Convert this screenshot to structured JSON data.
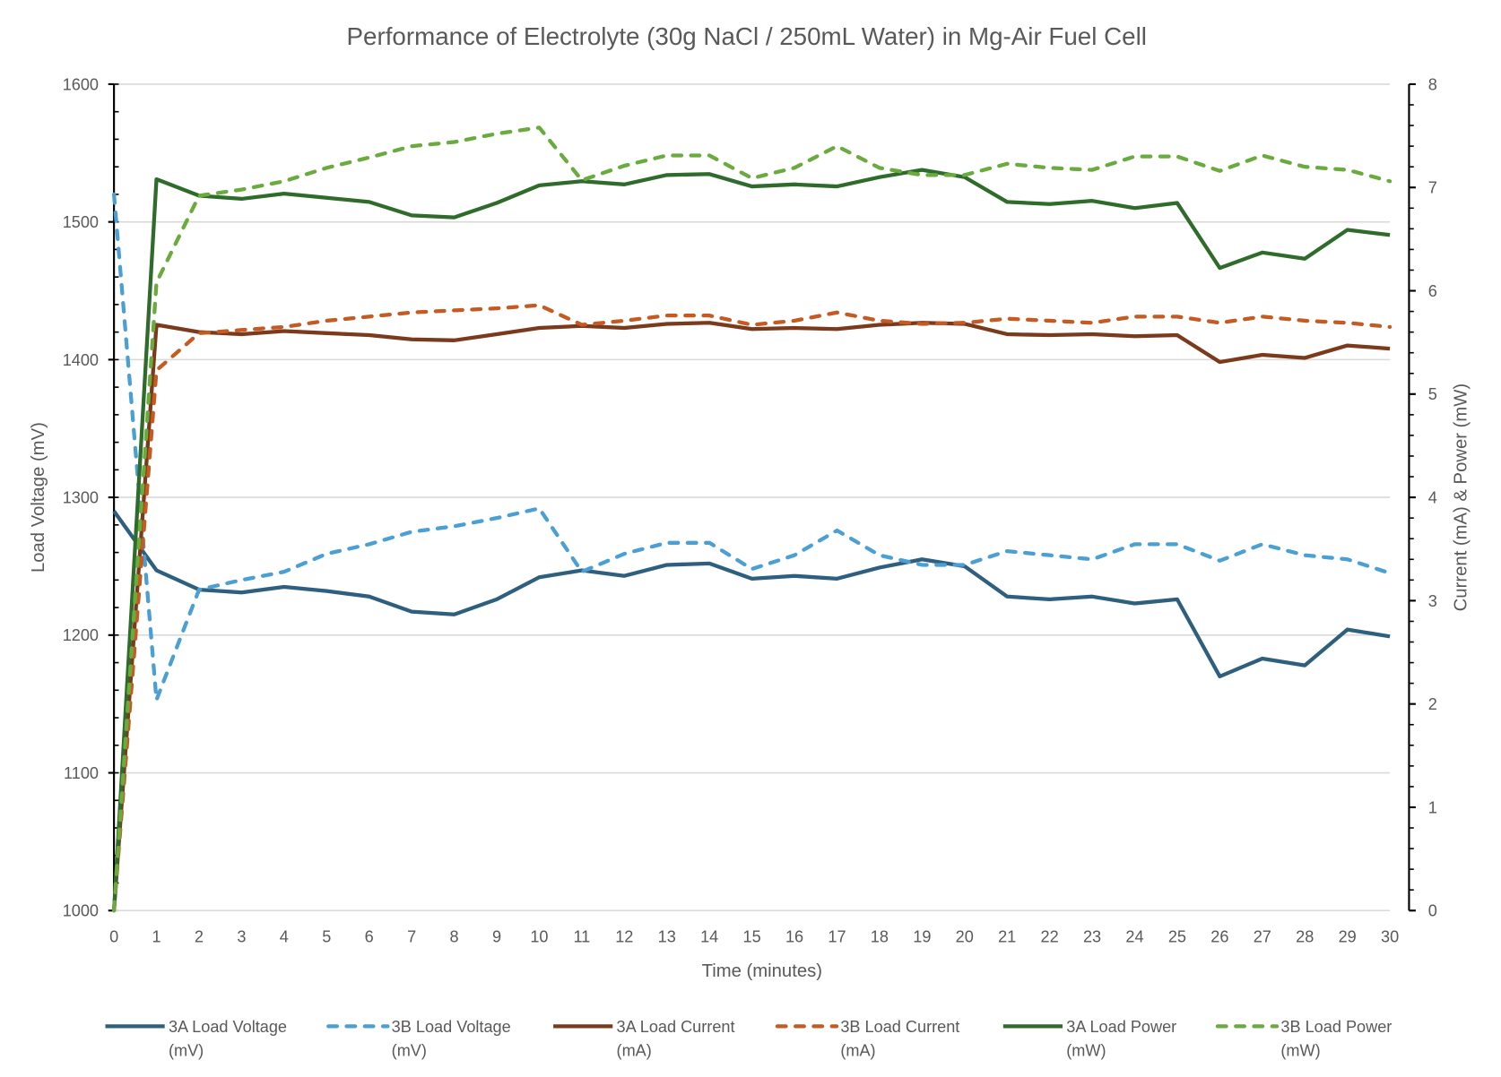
{
  "chart_data": {
    "type": "line",
    "title": "Performance of Electrolyte (30g NaCl / 250mL Water) in Mg-Air Fuel Cell",
    "xlabel": "Time (minutes)",
    "ylabel": "Load Voltage (mV)",
    "y2label": "Current (mA) & Power (mW)",
    "x": [
      0,
      1,
      2,
      3,
      4,
      5,
      6,
      7,
      8,
      9,
      10,
      11,
      12,
      13,
      14,
      15,
      16,
      17,
      18,
      19,
      20,
      21,
      22,
      23,
      24,
      25,
      26,
      27,
      28,
      29,
      30
    ],
    "xlim": [
      0,
      30
    ],
    "ylim": [
      1000,
      1600
    ],
    "y2lim": [
      0,
      8
    ],
    "yticks": [
      1000,
      1100,
      1200,
      1300,
      1400,
      1500,
      1600
    ],
    "y2ticks": [
      0,
      1,
      2,
      3,
      4,
      5,
      6,
      7,
      8
    ],
    "grid": true,
    "legend_position": "bottom",
    "series": [
      {
        "name": "3A Load Voltage (mV)",
        "legend": [
          "3A Load Voltage",
          "(mV)"
        ],
        "axis": "left",
        "color": "#2e5f7f",
        "dashed": false,
        "values": [
          1290,
          1247,
          1233,
          1231,
          1235,
          1232,
          1228,
          1217,
          1215,
          1226,
          1242,
          1247,
          1243,
          1251,
          1252,
          1241,
          1243,
          1241,
          1249,
          1255,
          1250,
          1228,
          1226,
          1228,
          1223,
          1226,
          1170,
          1183,
          1178,
          1204,
          1199
        ]
      },
      {
        "name": "3B Load Voltage (mV)",
        "legend": [
          "3B Load Voltage",
          "(mV)"
        ],
        "axis": "left",
        "color": "#4a9fd4",
        "dashed": true,
        "values": [
          1520,
          1153,
          1233,
          1240,
          1246,
          1259,
          1266,
          1275,
          1279,
          1285,
          1292,
          1246,
          1259,
          1267,
          1267,
          1248,
          1258,
          1276,
          1258,
          1251,
          1251,
          1261,
          1258,
          1255,
          1266,
          1266,
          1254,
          1266,
          1258,
          1255,
          1245
        ]
      },
      {
        "name": "3A Load Current (mA)",
        "legend": [
          "3A Load Current",
          "(mA)"
        ],
        "axis": "right",
        "color": "#7b3a1c",
        "dashed": false,
        "values": [
          0,
          5.67,
          5.6,
          5.58,
          5.61,
          5.59,
          5.57,
          5.53,
          5.52,
          5.58,
          5.64,
          5.66,
          5.64,
          5.68,
          5.69,
          5.63,
          5.64,
          5.63,
          5.67,
          5.69,
          5.68,
          5.58,
          5.57,
          5.58,
          5.56,
          5.57,
          5.31,
          5.38,
          5.35,
          5.47,
          5.44
        ]
      },
      {
        "name": "3B Load Current (mA)",
        "legend": [
          "3B Load Current",
          "(mA)"
        ],
        "axis": "right",
        "color": "#c55a22",
        "dashed": true,
        "values": [
          0,
          5.23,
          5.59,
          5.62,
          5.65,
          5.71,
          5.75,
          5.79,
          5.81,
          5.83,
          5.86,
          5.67,
          5.71,
          5.76,
          5.76,
          5.67,
          5.71,
          5.79,
          5.71,
          5.68,
          5.69,
          5.73,
          5.71,
          5.69,
          5.75,
          5.75,
          5.69,
          5.75,
          5.71,
          5.69,
          5.65
        ]
      },
      {
        "name": "3A Load Power (mW)",
        "legend": [
          "3A Load Power",
          "(mW)"
        ],
        "axis": "right",
        "color": "#2f6b2a",
        "dashed": false,
        "values": [
          0,
          7.08,
          6.92,
          6.89,
          6.94,
          6.9,
          6.86,
          6.73,
          6.71,
          6.85,
          7.02,
          7.06,
          7.03,
          7.12,
          7.13,
          7.01,
          7.03,
          7.01,
          7.1,
          7.17,
          7.1,
          6.86,
          6.84,
          6.87,
          6.8,
          6.85,
          6.22,
          6.37,
          6.31,
          6.59,
          6.54
        ]
      },
      {
        "name": "3B Load Power (mW)",
        "legend": [
          "3B Load Power",
          "(mW)"
        ],
        "axis": "right",
        "color": "#6aab3e",
        "dashed": true,
        "values": [
          0,
          6.08,
          6.92,
          6.98,
          7.06,
          7.19,
          7.29,
          7.4,
          7.44,
          7.52,
          7.58,
          7.07,
          7.21,
          7.31,
          7.31,
          7.09,
          7.19,
          7.4,
          7.19,
          7.12,
          7.12,
          7.23,
          7.19,
          7.17,
          7.3,
          7.3,
          7.16,
          7.31,
          7.2,
          7.17,
          7.06
        ]
      }
    ]
  }
}
